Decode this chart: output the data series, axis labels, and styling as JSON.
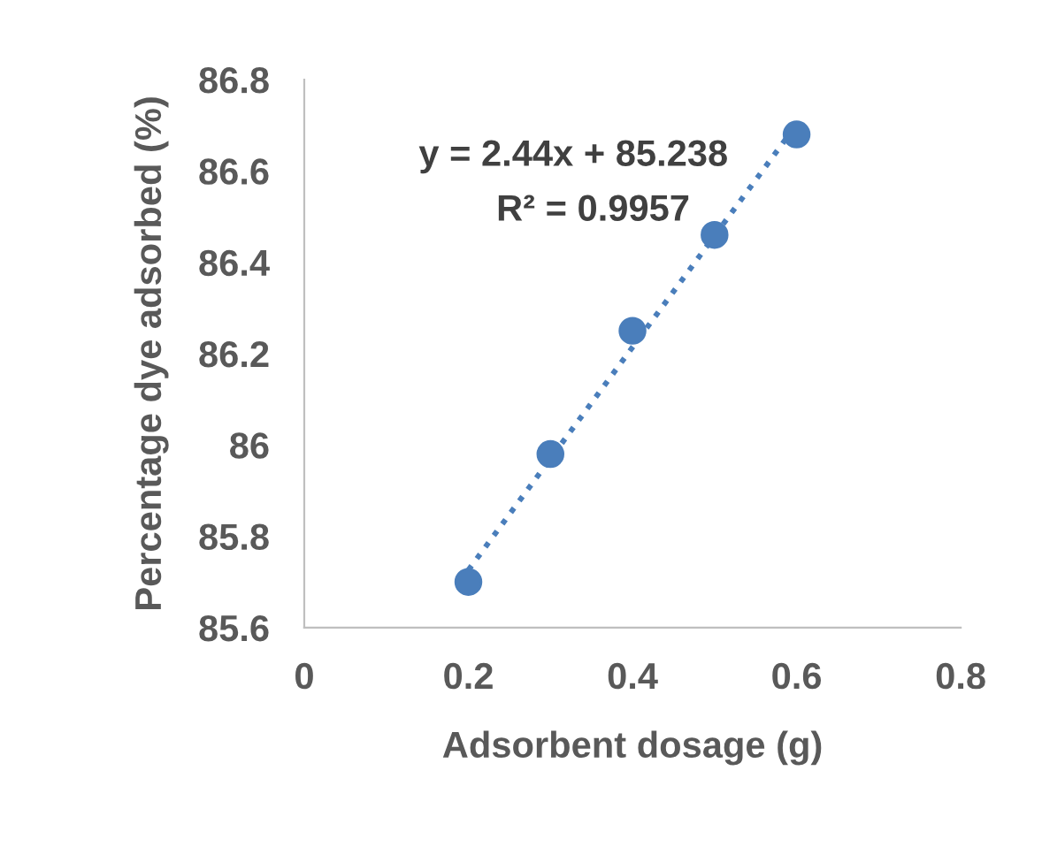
{
  "chart_data": {
    "type": "scatter",
    "xlabel": "Adsorbent dosage (g)",
    "ylabel": "Percentage dye adsorbed (%)",
    "x": [
      0.2,
      0.3,
      0.4,
      0.5,
      0.6
    ],
    "series": [
      {
        "color": "#4a7ebb",
        "values": [
          85.7,
          85.98,
          86.25,
          86.46,
          86.68
        ],
        "marker": "circle"
      },
      {
        "type": "line",
        "color": "#4a7ebb",
        "x": [
          0.2,
          0.6
        ],
        "values": [
          85.726,
          86.702
        ],
        "line_style": "dotted",
        "marker": "none"
      }
    ],
    "annotations": [
      "y = 2.44x + 85.238",
      "R² = 0.9957"
    ],
    "xlim": [
      0,
      0.8
    ],
    "xticks": [
      0,
      0.2,
      0.4,
      0.6,
      0.8
    ],
    "ylim": [
      85.6,
      86.8
    ],
    "yticks": [
      85.6,
      85.8,
      86,
      86.2,
      86.4,
      86.6,
      86.8
    ],
    "grid": false,
    "legend": false
  }
}
